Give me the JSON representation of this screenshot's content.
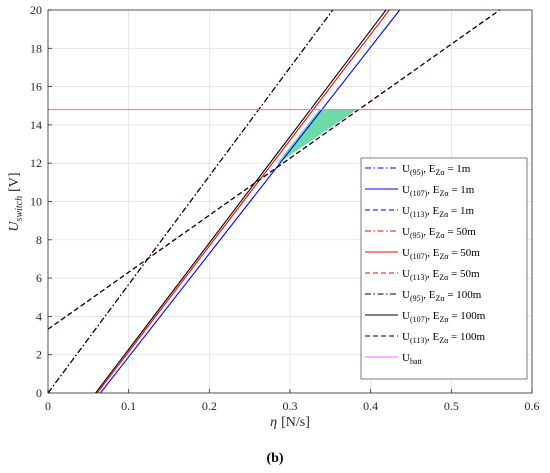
{
  "chart_data": {
    "type": "line",
    "xlabel": {
      "main": "η",
      "unit": "[N/s]"
    },
    "ylabel": {
      "main": "U",
      "sub": "switch",
      "unit": "[V]"
    },
    "xlim": [
      0,
      0.6
    ],
    "ylim": [
      0,
      20
    ],
    "xticks": [
      "0",
      "0.1",
      "0.2",
      "0.3",
      "0.4",
      "0.5",
      "0.6"
    ],
    "xtick_values": [
      0,
      0.1,
      0.2,
      0.3,
      0.4,
      0.5,
      0.6
    ],
    "yticks": [
      "0",
      "2",
      "4",
      "6",
      "8",
      "10",
      "12",
      "14",
      "16",
      "18",
      "20"
    ],
    "ytick_values": [
      0,
      2,
      4,
      6,
      8,
      10,
      12,
      14,
      16,
      18,
      20
    ],
    "grid": true,
    "legend_position": "right",
    "panel_label": "(b)",
    "series": [
      {
        "base": "U",
        "sub": "(95)",
        "eq": "E",
        "eqsub": "Zα",
        "val": "= 1m",
        "color": "#0000ff",
        "dash": "dashdot",
        "x": [
          0,
          0.353
        ],
        "y": [
          0,
          20
        ]
      },
      {
        "base": "U",
        "sub": "(107)",
        "eq": "E",
        "eqsub": "Zα",
        "val": "= 1m",
        "color": "#0000ff",
        "dash": "solid",
        "x": [
          0.065,
          0.436
        ],
        "y": [
          0,
          20
        ]
      },
      {
        "base": "U",
        "sub": "(113)",
        "eq": "E",
        "eqsub": "Zα",
        "val": "= 1m",
        "color": "#0000ff",
        "dash": "dashed",
        "x": [
          0,
          0.56
        ],
        "y": [
          3.33,
          20
        ]
      },
      {
        "base": "U",
        "sub": "(95)",
        "eq": "E",
        "eqsub": "Zα",
        "val": "= 50m",
        "color": "#ff0000",
        "dash": "dashdot",
        "x": [
          0,
          0.353
        ],
        "y": [
          0,
          20
        ]
      },
      {
        "base": "U",
        "sub": "(107)",
        "eq": "E",
        "eqsub": "Zα",
        "val": "= 50m",
        "color": "#ff0000",
        "dash": "solid",
        "x": [
          0.061,
          0.423
        ],
        "y": [
          0,
          20
        ]
      },
      {
        "base": "U",
        "sub": "(113)",
        "eq": "E",
        "eqsub": "Zα",
        "val": "= 50m",
        "color": "#ff0000",
        "dash": "dashed",
        "x": [
          0,
          0.56
        ],
        "y": [
          3.33,
          20
        ]
      },
      {
        "base": "U",
        "sub": "(95)",
        "eq": "E",
        "eqsub": "Zα",
        "val": "= 100m",
        "color": "#000000",
        "dash": "dashdot",
        "x": [
          0,
          0.353
        ],
        "y": [
          0,
          20
        ]
      },
      {
        "base": "U",
        "sub": "(107)",
        "eq": "E",
        "eqsub": "Zα",
        "val": "= 100m",
        "color": "#000000",
        "dash": "solid",
        "x": [
          0.059,
          0.419
        ],
        "y": [
          0,
          20
        ]
      },
      {
        "base": "U",
        "sub": "(113)",
        "eq": "E",
        "eqsub": "Zα",
        "val": "= 100m",
        "color": "#000000",
        "dash": "dashed",
        "x": [
          0,
          0.56
        ],
        "y": [
          3.33,
          20
        ]
      },
      {
        "base": "U",
        "sub": "batt",
        "eq": "",
        "eqsub": "",
        "val": "",
        "color": "#ff66ff",
        "dash": "solid",
        "x": [
          0,
          0.6
        ],
        "y": [
          14.8,
          14.8
        ]
      }
    ],
    "shaded_region": {
      "color": "#3fce8c",
      "x": [
        0.283,
        0.336,
        0.383
      ],
      "y": [
        11.93,
        14.8,
        14.8
      ]
    }
  }
}
